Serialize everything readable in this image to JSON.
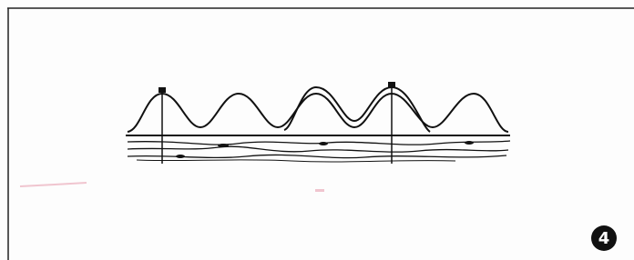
{
  "figure": {
    "label": "4"
  }
}
